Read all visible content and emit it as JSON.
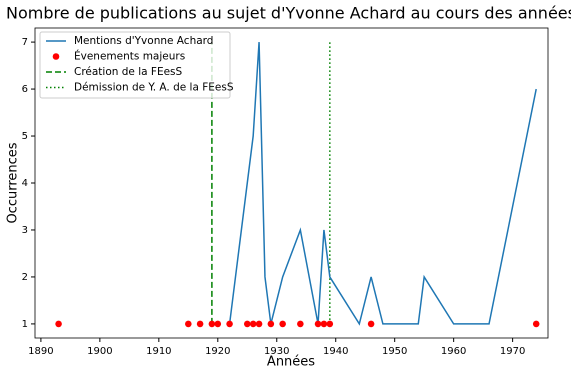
{
  "chart_data": {
    "type": "line",
    "title": "Nombre de publications au sujet d'Yvonne Achard au cours des années",
    "x_label": "Années",
    "y_label": "Occurrences",
    "xlim": [
      1889,
      1976
    ],
    "ylim": [
      0.7,
      7.3
    ],
    "xticks": [
      1890,
      1900,
      1910,
      1920,
      1930,
      1940,
      1950,
      1960,
      1970
    ],
    "yticks": [
      1,
      2,
      3,
      4,
      5,
      6,
      7
    ],
    "legend": "upper left",
    "series": [
      {
        "name": "Mentions d'Yvonne Achard",
        "kind": "line",
        "color": "#1f77b4",
        "x": [
          1922,
          1926,
          1927,
          1928,
          1929,
          1931,
          1934,
          1937,
          1938,
          1939,
          1944,
          1946,
          1948,
          1954,
          1955,
          1960,
          1966,
          1974
        ],
        "values": [
          1,
          5,
          7,
          2,
          1,
          2,
          3,
          1,
          3,
          2,
          1,
          2,
          1,
          1,
          2,
          1,
          1,
          6
        ]
      },
      {
        "name": "Évenements majeurs",
        "kind": "scatter",
        "color": "#ff0000",
        "x": [
          1893,
          1915,
          1917,
          1919,
          1920,
          1922,
          1925,
          1926,
          1927,
          1929,
          1931,
          1934,
          1937,
          1938,
          1939,
          1946,
          1974
        ],
        "values": [
          1,
          1,
          1,
          1,
          1,
          1,
          1,
          1,
          1,
          1,
          1,
          1,
          1,
          1,
          1,
          1,
          1
        ]
      }
    ],
    "vlines": [
      {
        "name": "Création de la FEesS",
        "x": 1919,
        "ymin": 1,
        "ymax": 7,
        "color": "#008000",
        "style": "dashed"
      },
      {
        "name": "Démission de Y. A. de la FEesS",
        "x": 1939,
        "ymin": 1,
        "ymax": 7,
        "color": "#008000",
        "style": "dotted"
      }
    ]
  }
}
